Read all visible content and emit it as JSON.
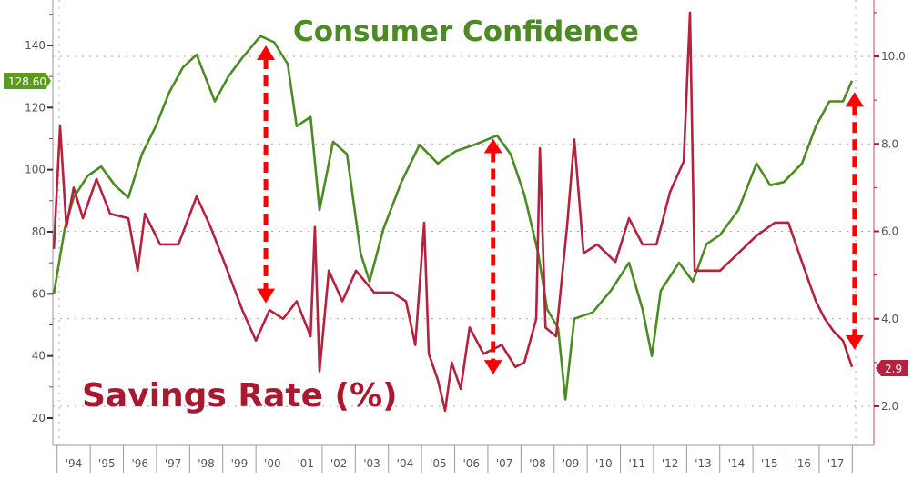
{
  "chart_data": {
    "type": "line",
    "title_series_1": "Consumer Confidence",
    "title_series_2": "Savings Rate (%)",
    "xlim": [
      1993.87,
      2018.6
    ],
    "x_tick_labels": [
      "'94",
      "'95",
      "'96",
      "'97",
      "'98",
      "'99",
      "'00",
      "'01",
      "'02",
      "'03",
      "'04",
      "'05",
      "'06",
      "'07",
      "'08",
      "'09",
      "'10",
      "'11",
      "'12",
      "'13",
      "'14",
      "'15",
      "'16",
      "'17"
    ],
    "left_axis": {
      "ylim": [
        17,
        152
      ],
      "ticks": [
        20,
        40,
        60,
        80,
        100,
        120,
        140
      ],
      "tick_labels": [
        "20",
        "40",
        "60",
        "80",
        "100",
        "120",
        "140"
      ]
    },
    "right_axis": {
      "ylim": [
        1.7,
        11.2
      ],
      "ticks": [
        2,
        4,
        6,
        8,
        10
      ],
      "tick_labels": [
        "2.0",
        "4.0",
        "6.0",
        "8.0",
        "10.0"
      ]
    },
    "grid": "dotted horizontal at right-axis ticks",
    "series": [
      {
        "name": "Consumer Confidence",
        "axis": "left",
        "color": "#4c8a22",
        "last_value_label": "128.60",
        "x": [
          1993.9,
          1994.23,
          1994.5,
          1994.92,
          1995.33,
          1995.74,
          1996.15,
          1996.56,
          1996.98,
          1997.39,
          1997.8,
          1998.21,
          1998.76,
          1999.17,
          1999.59,
          2000.14,
          2000.55,
          2000.96,
          2001.23,
          2001.65,
          2001.92,
          2002.33,
          2002.75,
          2003.16,
          2003.43,
          2003.85,
          2004.39,
          2004.94,
          2005.49,
          2006.04,
          2006.59,
          2007.28,
          2007.69,
          2008.1,
          2008.52,
          2008.79,
          2009.12,
          2009.34,
          2009.61,
          2010.16,
          2010.71,
          2011.26,
          2011.67,
          2011.95,
          2012.22,
          2012.77,
          2013.19,
          2013.6,
          2014.01,
          2014.56,
          2015.11,
          2015.52,
          2015.93,
          2016.48,
          2016.9,
          2017.31,
          2017.72,
          2017.99
        ],
        "y": [
          60,
          81,
          91,
          98,
          101,
          95,
          91,
          105,
          114,
          125,
          133,
          137,
          122,
          130,
          136,
          143,
          141,
          134,
          114,
          117,
          87,
          109,
          105,
          73,
          64,
          81,
          96,
          108,
          102,
          106,
          108,
          111,
          105,
          92,
          73,
          55,
          49,
          26,
          52,
          54,
          61,
          70,
          55,
          40,
          61,
          70,
          64,
          76,
          79,
          87,
          102,
          95,
          96,
          102,
          114,
          122,
          122,
          128.6
        ]
      },
      {
        "name": "Savings Rate (%)",
        "axis": "right",
        "color": "#b5223d",
        "last_value_label": "2.9",
        "x": [
          1993.9,
          1994.09,
          1994.28,
          1994.5,
          1994.78,
          1995.19,
          1995.6,
          1996.15,
          1996.43,
          1996.65,
          1997.11,
          1997.66,
          1998.21,
          1998.63,
          1999.04,
          1999.59,
          2000.0,
          2000.41,
          2000.82,
          2001.23,
          2001.65,
          2001.78,
          2001.92,
          2002.2,
          2002.61,
          2003.02,
          2003.57,
          2004.12,
          2004.53,
          2004.81,
          2005.08,
          2005.22,
          2005.49,
          2005.71,
          2005.91,
          2006.18,
          2006.45,
          2006.87,
          2007.42,
          2007.83,
          2008.1,
          2008.46,
          2008.57,
          2008.74,
          2009.06,
          2009.39,
          2009.61,
          2009.89,
          2010.3,
          2010.85,
          2011.26,
          2011.67,
          2012.09,
          2012.5,
          2012.91,
          2013.1,
          2013.24,
          2013.6,
          2014.01,
          2014.56,
          2015.11,
          2015.66,
          2016.07,
          2016.48,
          2016.9,
          2017.17,
          2017.45,
          2017.72,
          2017.99
        ],
        "y": [
          5.6,
          8.4,
          6.1,
          7.0,
          6.3,
          7.2,
          6.4,
          6.3,
          5.1,
          6.4,
          5.7,
          5.7,
          6.8,
          6.1,
          5.3,
          4.2,
          3.5,
          4.2,
          4.0,
          4.4,
          3.6,
          6.1,
          2.8,
          5.1,
          4.4,
          5.1,
          4.6,
          4.6,
          4.4,
          3.4,
          6.2,
          3.2,
          2.6,
          1.9,
          3.0,
          2.4,
          3.8,
          3.2,
          3.4,
          2.9,
          3.0,
          4.0,
          7.9,
          3.8,
          3.6,
          6.1,
          8.1,
          5.5,
          5.7,
          5.3,
          6.3,
          5.7,
          5.7,
          6.9,
          7.6,
          11.0,
          5.1,
          5.1,
          5.1,
          5.5,
          5.9,
          6.2,
          6.2,
          5.3,
          4.4,
          4.0,
          3.7,
          3.5,
          2.9
        ]
      }
    ],
    "annotations": [
      {
        "type": "double-arrow",
        "color": "#ff0000",
        "x": 2000.3,
        "from_left_value": 140,
        "to_left_value": 57
      },
      {
        "type": "double-arrow",
        "color": "#ff0000",
        "x": 2007.16,
        "from_left_value": 110,
        "to_left_value": 34
      },
      {
        "type": "double-arrow",
        "color": "#ff0000",
        "x": 2018.07,
        "from_left_value": 125,
        "to_left_value": 42
      }
    ]
  }
}
